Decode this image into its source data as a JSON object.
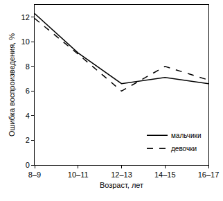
{
  "chart_data": {
    "type": "line",
    "x_label": "Возраст, лет",
    "y_label": "Ошибка воспроизведения, %",
    "categories": [
      "8–9",
      "10–11",
      "12–13",
      "14–15",
      "16–17"
    ],
    "series": [
      {
        "name": "мальчики",
        "color": "#000000",
        "line_style": "solid",
        "values": [
          12.3,
          9.1,
          6.6,
          7.1,
          6.6
        ]
      },
      {
        "name": "девочки",
        "color": "#000000",
        "line_style": "dash",
        "values": [
          11.9,
          9.0,
          6.0,
          8.0,
          6.9
        ]
      }
    ],
    "ylim": [
      0,
      13
    ],
    "yticks": [
      0,
      2,
      4,
      6,
      8,
      10,
      12
    ],
    "grid": false,
    "legend": "lower right"
  }
}
